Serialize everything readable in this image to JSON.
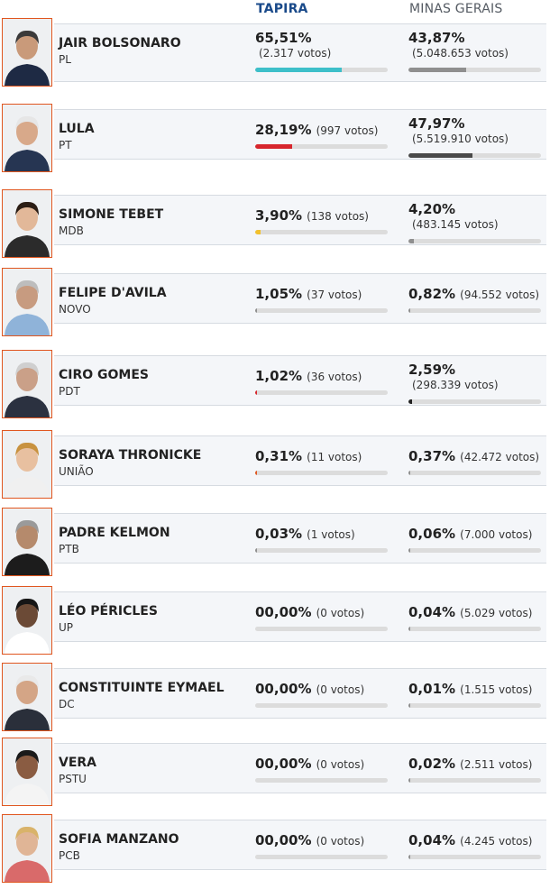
{
  "headers": {
    "tapira": "TAPIRA",
    "minas": "MINAS GERAIS"
  },
  "candidates": [
    {
      "name": "JAIR BOLSONARO",
      "party": "PL",
      "tapira": {
        "pct": "65,51%",
        "votes": "(2.317 votos)",
        "share": 65.51,
        "color": "#3dbfc9"
      },
      "minas": {
        "pct": "43,87%",
        "votes": "(5.048.653 votos)",
        "share": 43.87,
        "color": "#8f8f8f"
      }
    },
    {
      "name": "LULA",
      "party": "PT",
      "tapira": {
        "pct": "28,19%",
        "votes": "(997 votos)",
        "share": 28.19,
        "color": "#d7262d"
      },
      "minas": {
        "pct": "47,97%",
        "votes": "(5.519.910 votos)",
        "share": 47.97,
        "color": "#4a4a4a"
      }
    },
    {
      "name": "SIMONE TEBET",
      "party": "MDB",
      "tapira": {
        "pct": "3,90%",
        "votes": "(138 votos)",
        "share": 3.9,
        "color": "#f2c12e"
      },
      "minas": {
        "pct": "4,20%",
        "votes": "(483.145 votos)",
        "share": 4.2,
        "color": "#8f8f8f"
      }
    },
    {
      "name": "FELIPE D'AVILA",
      "party": "NOVO",
      "tapira": {
        "pct": "1,05%",
        "votes": "(37 votos)",
        "share": 1.05,
        "color": "#8f8f8f"
      },
      "minas": {
        "pct": "0,82%",
        "votes": "(94.552 votos)",
        "share": 0.82,
        "color": "#8f8f8f"
      }
    },
    {
      "name": "CIRO GOMES",
      "party": "PDT",
      "tapira": {
        "pct": "1,02%",
        "votes": "(36 votos)",
        "share": 1.02,
        "color": "#d7262d"
      },
      "minas": {
        "pct": "2,59%",
        "votes": "(298.339 votos)",
        "share": 2.59,
        "color": "#222222"
      }
    },
    {
      "name": "SORAYA THRONICKE",
      "party": "UNIÃO",
      "tapira": {
        "pct": "0,31%",
        "votes": "(11 votos)",
        "share": 0.31,
        "color": "#e0561f"
      },
      "minas": {
        "pct": "0,37%",
        "votes": "(42.472 votos)",
        "share": 0.37,
        "color": "#8f8f8f"
      }
    },
    {
      "name": "PADRE KELMON",
      "party": "PTB",
      "tapira": {
        "pct": "0,03%",
        "votes": "(1 votos)",
        "share": 0.03,
        "color": "#8f8f8f"
      },
      "minas": {
        "pct": "0,06%",
        "votes": "(7.000 votos)",
        "share": 0.06,
        "color": "#8f8f8f"
      }
    },
    {
      "name": "LÉO PÉRICLES",
      "party": "UP",
      "tapira": {
        "pct": "00,00%",
        "votes": "(0 votos)",
        "share": 0,
        "color": "#8f8f8f"
      },
      "minas": {
        "pct": "0,04%",
        "votes": "(5.029 votos)",
        "share": 0.04,
        "color": "#8f8f8f"
      }
    },
    {
      "name": "CONSTITUINTE EYMAEL",
      "party": "DC",
      "tapira": {
        "pct": "00,00%",
        "votes": "(0 votos)",
        "share": 0,
        "color": "#8f8f8f"
      },
      "minas": {
        "pct": "0,01%",
        "votes": "(1.515 votos)",
        "share": 0.01,
        "color": "#8f8f8f"
      }
    },
    {
      "name": "VERA",
      "party": "PSTU",
      "tapira": {
        "pct": "00,00%",
        "votes": "(0 votos)",
        "share": 0,
        "color": "#8f8f8f"
      },
      "minas": {
        "pct": "0,02%",
        "votes": "(2.511 votos)",
        "share": 0.02,
        "color": "#8f8f8f"
      }
    },
    {
      "name": "SOFIA MANZANO",
      "party": "PCB",
      "tapira": {
        "pct": "00,00%",
        "votes": "(0 votos)",
        "share": 0,
        "color": "#8f8f8f"
      },
      "minas": {
        "pct": "0,04%",
        "votes": "(4.245 votos)",
        "share": 0.04,
        "color": "#8f8f8f"
      }
    }
  ],
  "icons": {
    "photo": "candidate-photo"
  }
}
